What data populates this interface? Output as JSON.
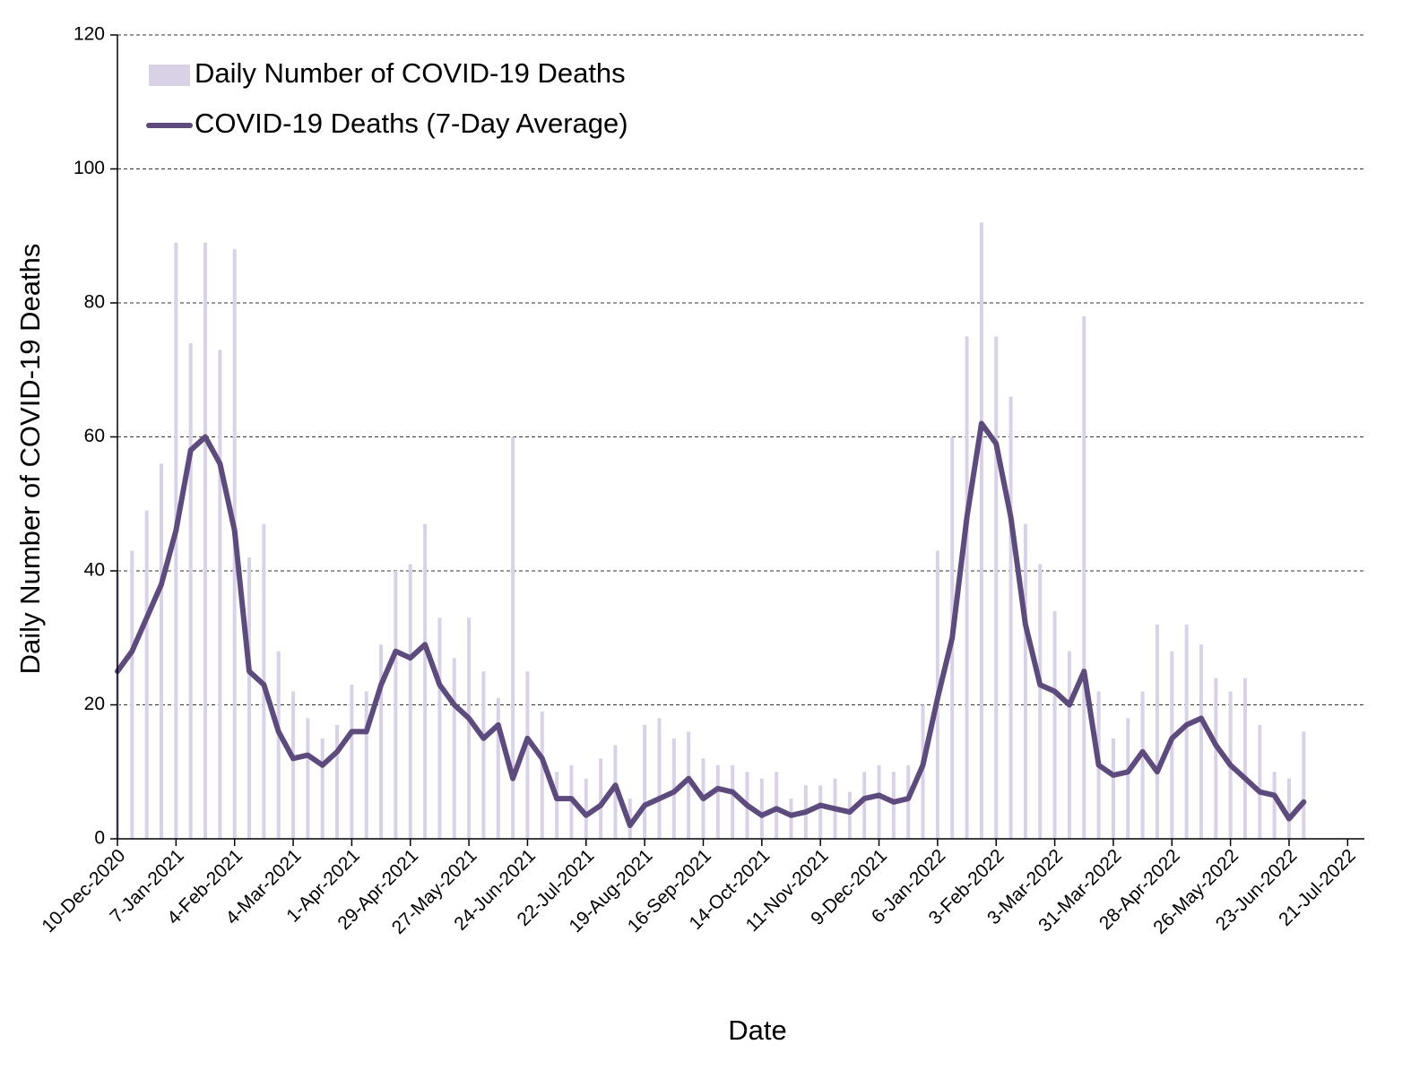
{
  "chart_data": {
    "type": "bar-line",
    "x_label": "Date",
    "y_label": "Daily Number of COVID-19 Deaths",
    "x": [
      "10-Dec-2020",
      "17-Dec-2020",
      "24-Dec-2020",
      "31-Dec-2020",
      "7-Jan-2021",
      "14-Jan-2021",
      "21-Jan-2021",
      "28-Jan-2021",
      "4-Feb-2021",
      "11-Feb-2021",
      "18-Feb-2021",
      "25-Feb-2021",
      "4-Mar-2021",
      "11-Mar-2021",
      "18-Mar-2021",
      "25-Mar-2021",
      "1-Apr-2021",
      "8-Apr-2021",
      "15-Apr-2021",
      "22-Apr-2021",
      "29-Apr-2021",
      "6-May-2021",
      "13-May-2021",
      "20-May-2021",
      "27-May-2021",
      "3-Jun-2021",
      "10-Jun-2021",
      "17-Jun-2021",
      "24-Jun-2021",
      "1-Jul-2021",
      "8-Jul-2021",
      "15-Jul-2021",
      "22-Jul-2021",
      "29-Jul-2021",
      "5-Aug-2021",
      "12-Aug-2021",
      "19-Aug-2021",
      "26-Aug-2021",
      "2-Sep-2021",
      "9-Sep-2021",
      "16-Sep-2021",
      "23-Sep-2021",
      "30-Sep-2021",
      "7-Oct-2021",
      "14-Oct-2021",
      "21-Oct-2021",
      "28-Oct-2021",
      "4-Nov-2021",
      "11-Nov-2021",
      "18-Nov-2021",
      "25-Nov-2021",
      "2-Dec-2021",
      "9-Dec-2021",
      "16-Dec-2021",
      "23-Dec-2021",
      "30-Dec-2021",
      "6-Jan-2022",
      "13-Jan-2022",
      "20-Jan-2022",
      "27-Jan-2022",
      "3-Feb-2022",
      "10-Feb-2022",
      "17-Feb-2022",
      "24-Feb-2022",
      "3-Mar-2022",
      "10-Mar-2022",
      "17-Mar-2022",
      "24-Mar-2022",
      "31-Mar-2022",
      "7-Apr-2022",
      "14-Apr-2022",
      "21-Apr-2022",
      "28-Apr-2022",
      "5-May-2022",
      "12-May-2022",
      "19-May-2022",
      "26-May-2022",
      "2-Jun-2022",
      "9-Jun-2022",
      "16-Jun-2022",
      "23-Jun-2022",
      "30-Jun-2022"
    ],
    "series": [
      {
        "name": "Daily Number of COVID-19 Deaths",
        "kind": "bar",
        "color": "#d9d2e7",
        "values": [
          40,
          43,
          49,
          56,
          89,
          74,
          89,
          73,
          88,
          42,
          47,
          28,
          22,
          18,
          15,
          17,
          23,
          22,
          29,
          40,
          41,
          47,
          33,
          27,
          33,
          25,
          21,
          60,
          25,
          19,
          10,
          11,
          9,
          12,
          14,
          6,
          17,
          18,
          15,
          16,
          12,
          11,
          11,
          10,
          9,
          10,
          6,
          8,
          8,
          9,
          7,
          10,
          11,
          10,
          11,
          20,
          43,
          60,
          75,
          92,
          75,
          66,
          47,
          41,
          34,
          28,
          78,
          22,
          15,
          18,
          22,
          32,
          28,
          32,
          29,
          24,
          22,
          24,
          17,
          10,
          9,
          16
        ]
      },
      {
        "name": "COVID-19 Deaths (7-Day Average)",
        "kind": "line",
        "color": "#5e4b7d",
        "values": [
          25,
          28,
          33,
          38,
          46,
          58,
          60,
          56,
          46,
          25,
          23,
          16,
          12,
          12.5,
          11,
          13,
          16,
          16,
          23,
          28,
          27,
          29,
          23,
          20,
          18,
          15,
          17,
          9,
          15,
          12,
          6,
          6,
          3.5,
          5,
          8,
          2,
          5,
          6,
          7,
          9,
          6,
          7.5,
          7,
          5,
          3.5,
          4.5,
          3.5,
          4,
          5,
          4.5,
          4,
          6,
          6.5,
          5.5,
          6,
          11,
          21,
          30,
          48,
          62,
          59,
          48,
          32,
          23,
          22,
          20,
          25,
          11,
          9.5,
          10,
          13,
          10,
          15,
          17,
          18,
          14,
          11,
          9,
          7,
          6.5,
          3,
          5.5
        ]
      }
    ],
    "xlim": [
      "10-Dec-2020",
      "29-Jul-2022"
    ],
    "xticks": [
      "10-Dec-2020",
      "7-Jan-2021",
      "4-Feb-2021",
      "4-Mar-2021",
      "1-Apr-2021",
      "29-Apr-2021",
      "27-May-2021",
      "24-Jun-2021",
      "22-Jul-2021",
      "19-Aug-2021",
      "16-Sep-2021",
      "14-Oct-2021",
      "11-Nov-2021",
      "9-Dec-2021",
      "6-Jan-2022",
      "3-Feb-2022",
      "3-Mar-2022",
      "31-Mar-2022",
      "28-Apr-2022",
      "26-May-2022",
      "23-Jun-2022",
      "21-Jul-2022"
    ],
    "ylim": [
      0,
      120
    ],
    "yticks": [
      0,
      20,
      40,
      60,
      80,
      100,
      120
    ],
    "grid": true,
    "legend": "upper left"
  }
}
